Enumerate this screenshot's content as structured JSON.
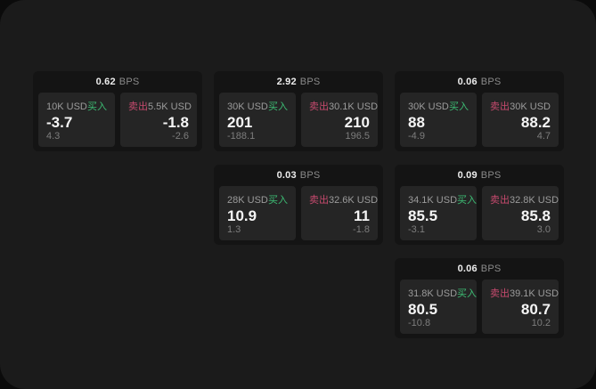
{
  "labels": {
    "bps_unit": "BPS",
    "buy": "买入",
    "sell": "卖出"
  },
  "colors": {
    "buy_green": "#3dbd74",
    "sell_red": "#c64a6e",
    "window_bg": "#1b1b1b",
    "card_bg": "#141414",
    "panel_bg": "#252525"
  },
  "cards": [
    {
      "bps": "0.62",
      "grid_row": 1,
      "grid_col": 1,
      "buy": {
        "amount": "10K USD",
        "price": "-3.7",
        "delta": "4.3"
      },
      "sell": {
        "amount": "5.5K USD",
        "price": "-1.8",
        "delta": "-2.6"
      }
    },
    {
      "bps": "2.92",
      "grid_row": 1,
      "grid_col": 2,
      "buy": {
        "amount": "30K USD",
        "price": "201",
        "delta": "-188.1"
      },
      "sell": {
        "amount": "30.1K USD",
        "price": "210",
        "delta": "196.5"
      }
    },
    {
      "bps": "0.06",
      "grid_row": 1,
      "grid_col": 3,
      "buy": {
        "amount": "30K USD",
        "price": "88",
        "delta": "-4.9"
      },
      "sell": {
        "amount": "30K USD",
        "price": "88.2",
        "delta": "4.7"
      }
    },
    {
      "bps": "0.03",
      "grid_row": 2,
      "grid_col": 2,
      "buy": {
        "amount": "28K USD",
        "price": "10.9",
        "delta": "1.3"
      },
      "sell": {
        "amount": "32.6K USD",
        "price": "11",
        "delta": "-1.8"
      }
    },
    {
      "bps": "0.09",
      "grid_row": 2,
      "grid_col": 3,
      "buy": {
        "amount": "34.1K USD",
        "price": "85.5",
        "delta": "-3.1"
      },
      "sell": {
        "amount": "32.8K USD",
        "price": "85.8",
        "delta": "3.0"
      }
    },
    {
      "bps": "0.06",
      "grid_row": 3,
      "grid_col": 3,
      "buy": {
        "amount": "31.8K USD",
        "price": "80.5",
        "delta": "-10.8"
      },
      "sell": {
        "amount": "39.1K USD",
        "price": "80.7",
        "delta": "10.2"
      }
    }
  ]
}
